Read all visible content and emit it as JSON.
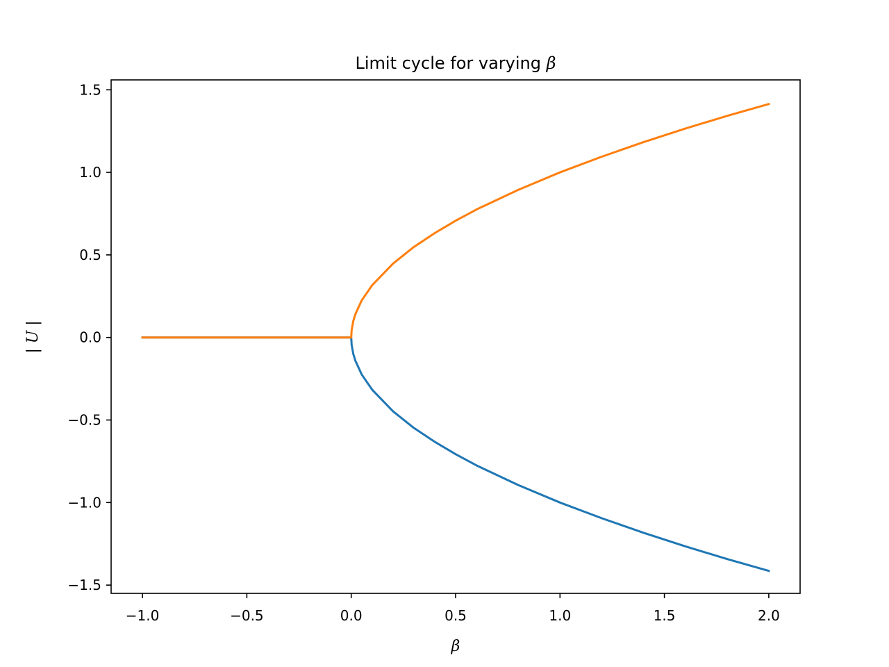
{
  "chart_data": {
    "type": "line",
    "title": "Limit cycle for varying ",
    "title_symbol": "β",
    "xlabel": "β",
    "ylabel": "| U |",
    "xlim": [
      -1.15,
      2.15
    ],
    "ylim": [
      -1.55,
      1.56
    ],
    "xticks": [
      -1.0,
      -0.5,
      0.0,
      0.5,
      1.0,
      1.5,
      2.0
    ],
    "xtick_labels": [
      "−1.0",
      "−0.5",
      "0.0",
      "0.5",
      "1.0",
      "1.5",
      "2.0"
    ],
    "yticks": [
      -1.5,
      -1.0,
      -0.5,
      0.0,
      0.5,
      1.0,
      1.5
    ],
    "ytick_labels": [
      "−1.5",
      "−1.0",
      "−0.5",
      "0.0",
      "0.5",
      "1.0",
      "1.5"
    ],
    "grid": false,
    "legend": "none",
    "series": [
      {
        "color": "#1f77b4",
        "x": [
          -1.0,
          -0.5,
          0.0,
          0.002,
          0.01,
          0.02,
          0.05,
          0.1,
          0.2,
          0.3,
          0.4,
          0.5,
          0.6,
          0.8,
          1.0,
          1.2,
          1.4,
          1.6,
          1.8,
          2.0
        ],
        "y": [
          0.0,
          0.0,
          0.0,
          -0.045,
          -0.1,
          -0.141,
          -0.224,
          -0.316,
          -0.447,
          -0.548,
          -0.632,
          -0.707,
          -0.775,
          -0.894,
          -1.0,
          -1.095,
          -1.183,
          -1.265,
          -1.342,
          -1.414
        ]
      },
      {
        "color": "#ff7f0e",
        "x": [
          -1.0,
          -0.5,
          0.0,
          0.002,
          0.01,
          0.02,
          0.05,
          0.1,
          0.2,
          0.3,
          0.4,
          0.5,
          0.6,
          0.8,
          1.0,
          1.2,
          1.4,
          1.6,
          1.8,
          2.0
        ],
        "y": [
          0.0,
          0.0,
          0.0,
          0.045,
          0.1,
          0.141,
          0.224,
          0.316,
          0.447,
          0.548,
          0.632,
          0.707,
          0.775,
          0.894,
          1.0,
          1.095,
          1.183,
          1.265,
          1.342,
          1.414
        ]
      }
    ]
  }
}
